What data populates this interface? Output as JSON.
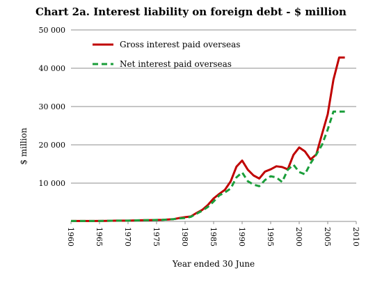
{
  "chart_data": {
    "type": "line",
    "title": "Chart 2a. Interest liability on foreign debt - $ million",
    "xlabel": "Year ended 30 June",
    "ylabel": "$ million",
    "xlim": [
      1960,
      2010
    ],
    "ylim": [
      0,
      50000
    ],
    "x_ticks": [
      "1960",
      "1965",
      "1970",
      "1975",
      "1980",
      "1985",
      "1990",
      "1995",
      "2000",
      "2005",
      "2010"
    ],
    "y_ticks": [
      {
        "value": 10000,
        "label": "10 000"
      },
      {
        "value": 20000,
        "label": "20 000"
      },
      {
        "value": 30000,
        "label": "30 000"
      },
      {
        "value": 40000,
        "label": "40 000"
      },
      {
        "value": 50000,
        "label": "50 000"
      }
    ],
    "grid": true,
    "legend_position": "top-left",
    "series": [
      {
        "name": "Gross interest paid overseas",
        "color": "#c00000",
        "style": "solid",
        "x": [
          1960,
          1962,
          1964,
          1966,
          1968,
          1970,
          1972,
          1974,
          1976,
          1978,
          1979,
          1980,
          1981,
          1982,
          1983,
          1984,
          1985,
          1986,
          1987,
          1988,
          1989,
          1990,
          1991,
          1992,
          1993,
          1994,
          1995,
          1996,
          1997,
          1998,
          1999,
          2000,
          2001,
          2002,
          2003,
          2004,
          2005,
          2006,
          2007,
          2008
        ],
        "values": [
          100,
          100,
          100,
          150,
          200,
          200,
          300,
          350,
          400,
          600,
          900,
          1100,
          1300,
          2200,
          3000,
          4300,
          6000,
          7200,
          8300,
          10500,
          14300,
          15900,
          13500,
          12000,
          11200,
          13000,
          13600,
          14400,
          14200,
          13600,
          17400,
          19300,
          18300,
          16200,
          17500,
          22800,
          28000,
          37000,
          42800,
          42800
        ]
      },
      {
        "name": "Net interest paid overseas",
        "color": "#1a9e3a",
        "style": "dashed",
        "x": [
          1960,
          1962,
          1964,
          1966,
          1968,
          1970,
          1972,
          1974,
          1976,
          1978,
          1979,
          1980,
          1981,
          1982,
          1983,
          1984,
          1985,
          1986,
          1987,
          1988,
          1989,
          1990,
          1991,
          1992,
          1993,
          1994,
          1995,
          1996,
          1997,
          1998,
          1999,
          2000,
          2001,
          2002,
          2003,
          2004,
          2005,
          2006,
          2007,
          2008
        ],
        "values": [
          100,
          100,
          100,
          150,
          200,
          200,
          300,
          350,
          400,
          600,
          800,
          900,
          1200,
          2000,
          2800,
          3800,
          5200,
          6800,
          7600,
          8600,
          11500,
          12800,
          10500,
          9600,
          9200,
          10800,
          11800,
          11500,
          10300,
          13500,
          14800,
          12900,
          12300,
          15200,
          17500,
          20000,
          24000,
          28700,
          28700,
          28700
        ]
      }
    ]
  }
}
